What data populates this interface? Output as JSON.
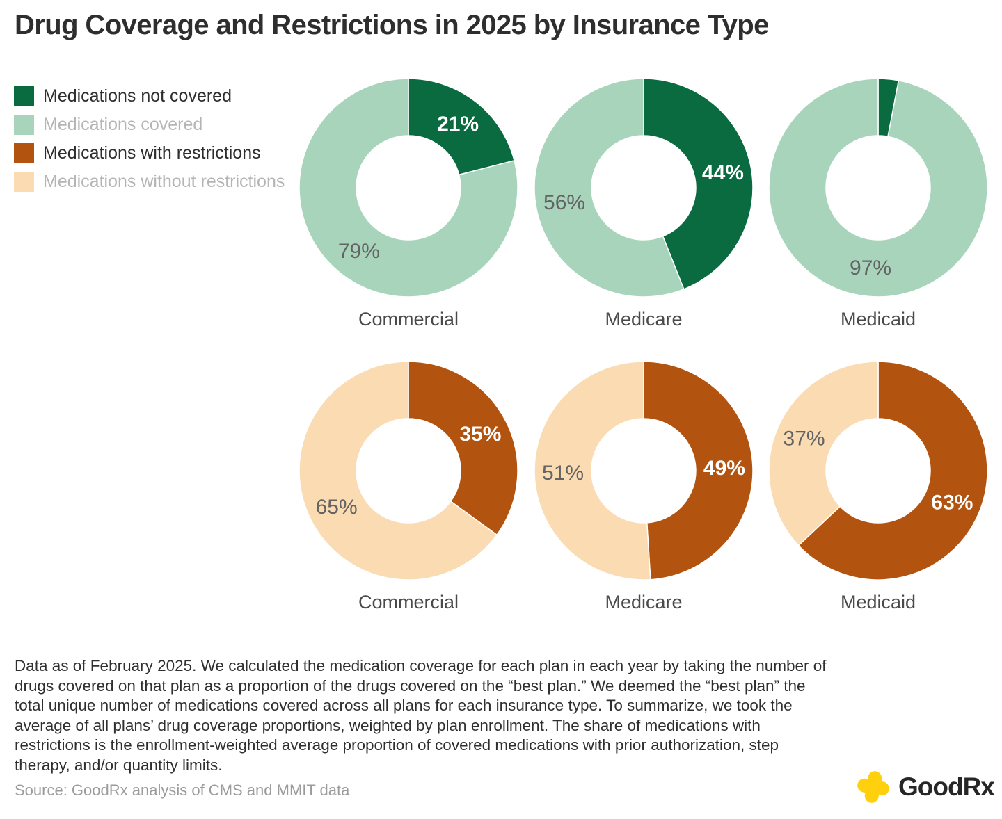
{
  "title": "Drug Coverage and Restrictions in 2025 by Insurance Type",
  "legend": {
    "items": [
      {
        "label": "Medications not covered",
        "color": "#0a6b41",
        "muted": false
      },
      {
        "label": "Medications covered",
        "color": "#a8d4bc",
        "muted": true
      },
      {
        "label": "Medications with restrictions",
        "color": "#b25310",
        "muted": false
      },
      {
        "label": "Medications without restrictions",
        "color": "#fadbb2",
        "muted": true
      }
    ]
  },
  "chart_data": {
    "type": "pie",
    "subtype": "donut",
    "layout": "2 rows x 3 columns",
    "hole_ratio": 0.48,
    "start_angle_deg": 0,
    "direction": "clockwise",
    "rows": [
      {
        "measure": "coverage",
        "slice_names": [
          "Medications not covered",
          "Medications covered"
        ],
        "slice_colors": [
          "#0a6b41",
          "#a8d4bc"
        ],
        "label_styles": [
          {
            "fill": "#ffffff",
            "bold": true
          },
          {
            "fill": "#636363",
            "bold": false
          }
        ],
        "charts": [
          {
            "category": "Commercial",
            "values": [
              21,
              79
            ],
            "labels": [
              "21%",
              "79%"
            ]
          },
          {
            "category": "Medicare",
            "values": [
              44,
              56
            ],
            "labels": [
              "44%",
              "56%"
            ]
          },
          {
            "category": "Medicaid",
            "values": [
              3,
              97
            ],
            "labels": [
              null,
              "97%"
            ]
          }
        ]
      },
      {
        "measure": "restrictions",
        "slice_names": [
          "Medications with restrictions",
          "Medications without restrictions"
        ],
        "slice_colors": [
          "#b25310",
          "#fadbb2"
        ],
        "label_styles": [
          {
            "fill": "#ffffff",
            "bold": true
          },
          {
            "fill": "#636363",
            "bold": false
          }
        ],
        "charts": [
          {
            "category": "Commercial",
            "values": [
              35,
              65
            ],
            "labels": [
              "35%",
              "65%"
            ]
          },
          {
            "category": "Medicare",
            "values": [
              49,
              51
            ],
            "labels": [
              "49%",
              "51%"
            ]
          },
          {
            "category": "Medicaid",
            "values": [
              63,
              37
            ],
            "labels": [
              "63%",
              "37%"
            ]
          }
        ]
      }
    ]
  },
  "footnote": "Data as of February 2025. We calculated the medication coverage for each plan in each year by taking the number of drugs covered on that plan as a proportion of the drugs covered on the “best plan.” We deemed the “best plan” the total unique number of medications covered across all plans for each insurance type. To summarize, we took the average of all plans’ drug coverage proportions, weighted by plan enrollment. The share of medications with restrictions is the enrollment-weighted average proportion of covered medications with prior authorization, step therapy, and/or quantity limits.",
  "source": "Source: GoodRx analysis of CMS and MMIT data",
  "logo": {
    "text": "GoodRx",
    "plus_color": "#ffd00e"
  }
}
